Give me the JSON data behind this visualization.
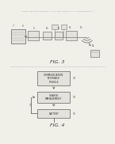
{
  "bg_color": "#f0efe8",
  "header_color": "#999999",
  "header_text": "Patent Application Publication   Jul. 26, 2016  Sheet 2 of 3   US 2016/0206241 A1",
  "fig3_label": "FIG. 3",
  "fig4_label": "FIG. 4",
  "box_edge_color": "#777777",
  "box_face_color": "#e4e2dc",
  "arrow_color": "#666666",
  "line_color": "#888888",
  "text_color": "#555555"
}
